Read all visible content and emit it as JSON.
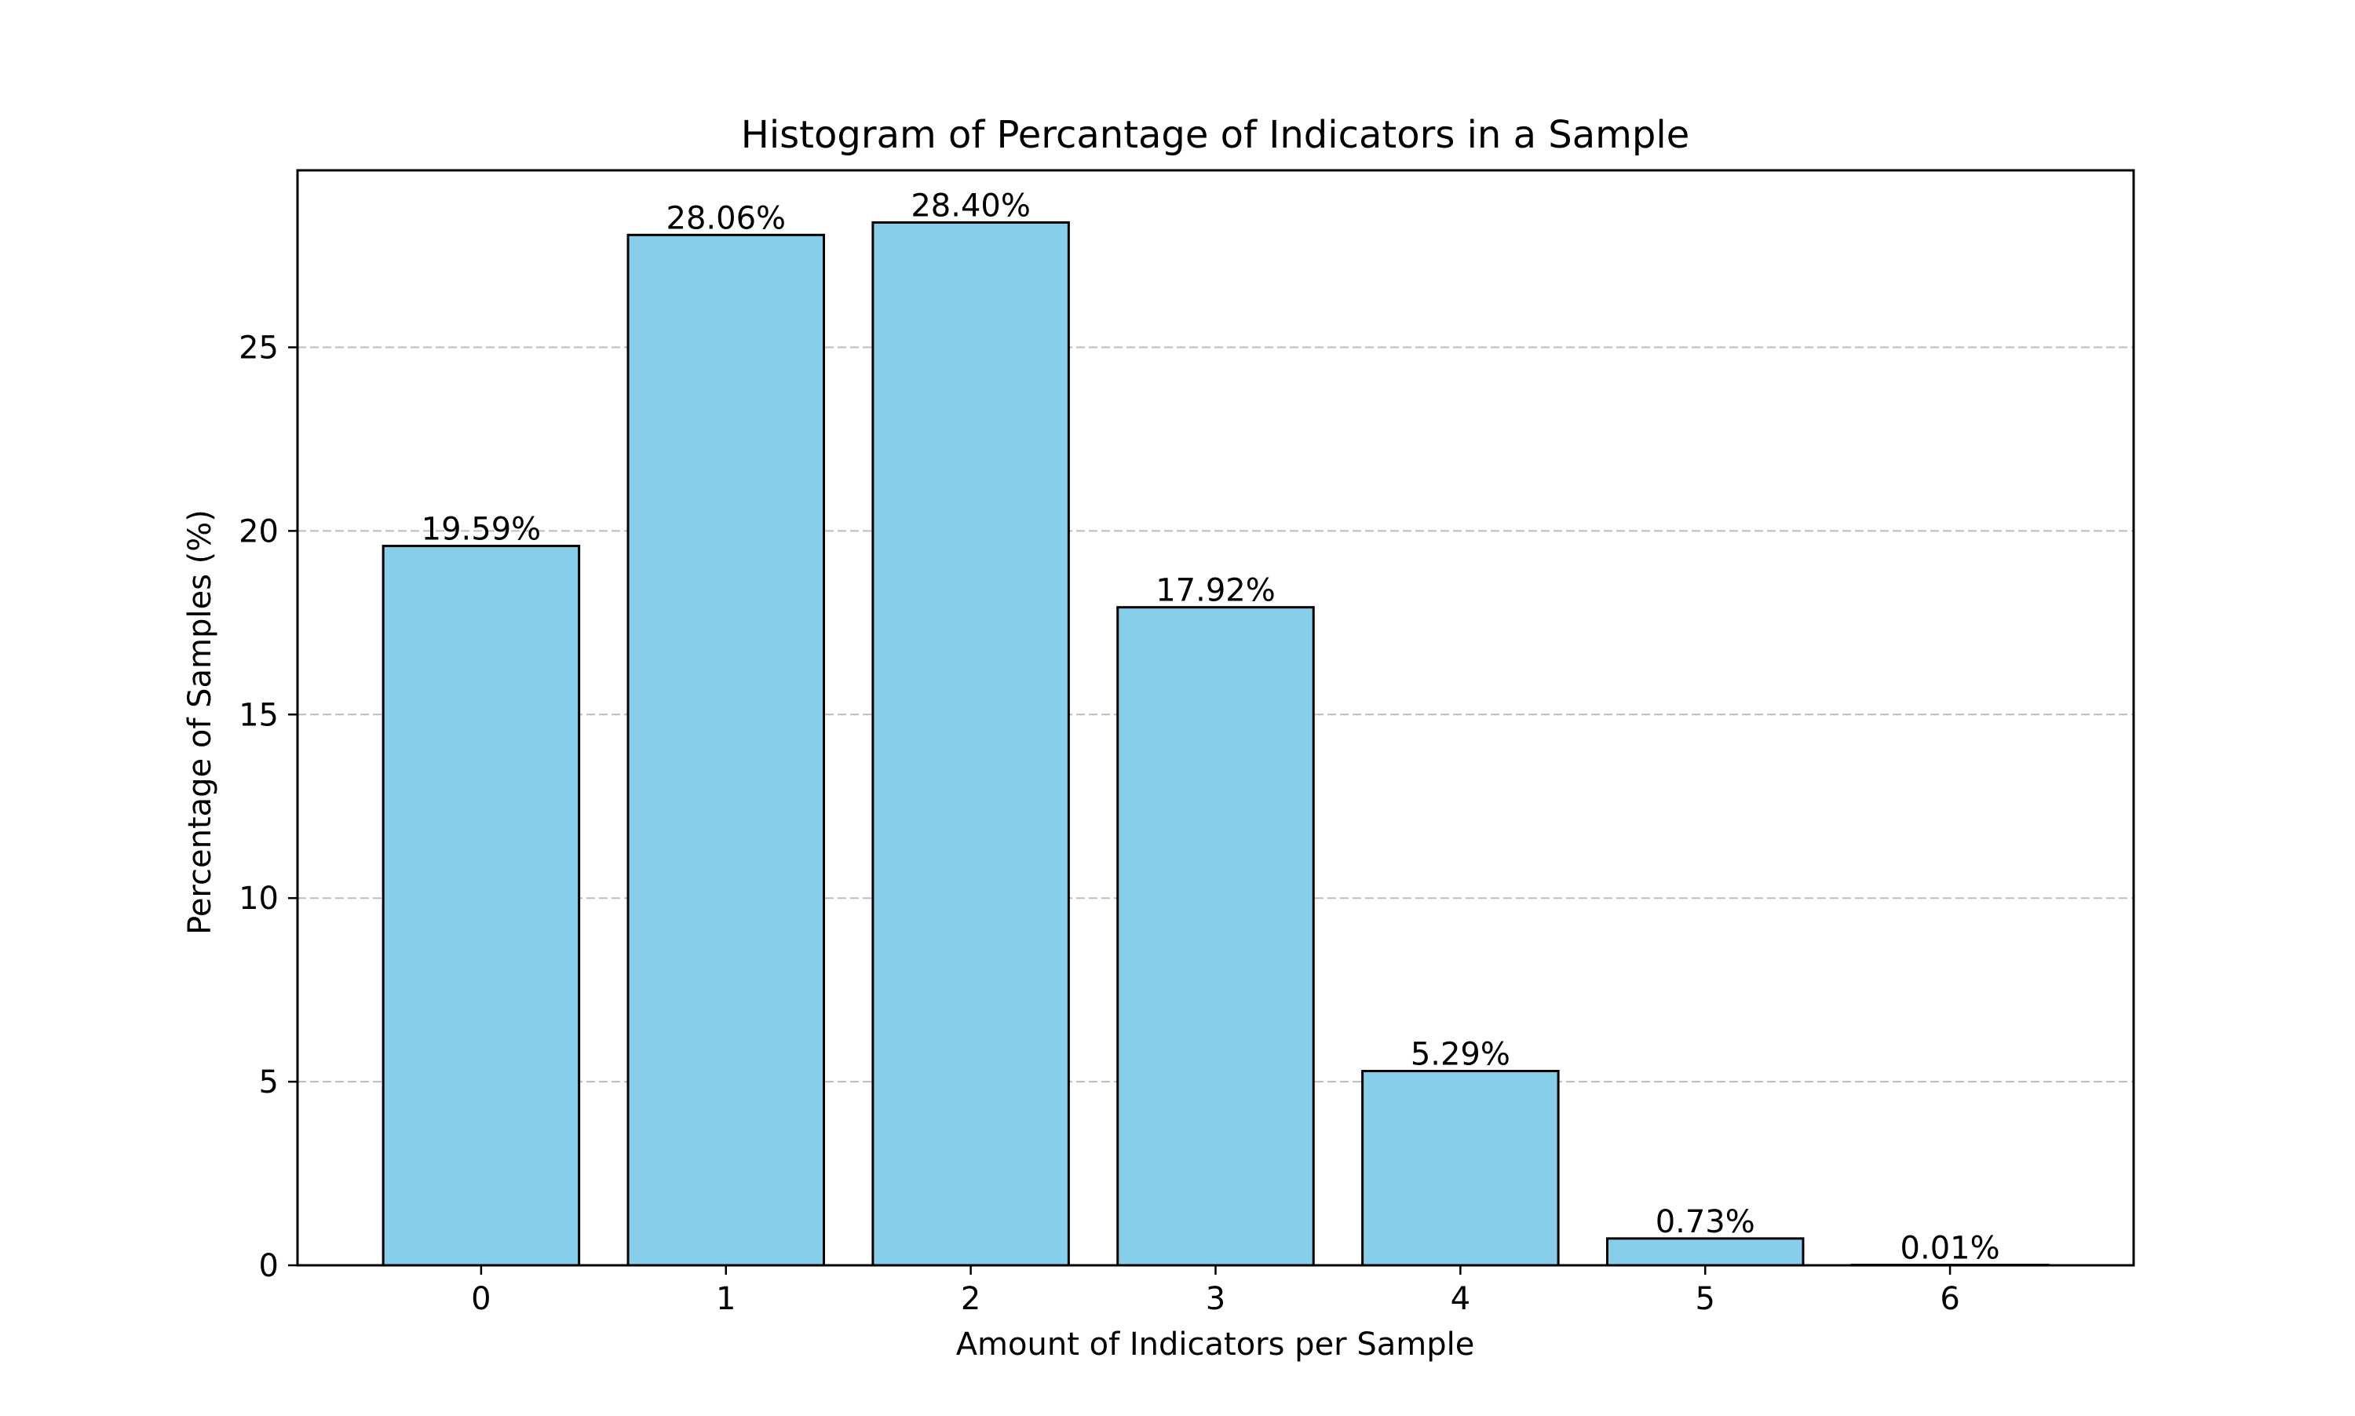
{
  "chart_data": {
    "type": "bar",
    "title": "Histogram of Percantage of Indicators in a Sample",
    "xlabel": "Amount of Indicators per Sample",
    "ylabel": "Percentage of Samples (%)",
    "categories": [
      "0",
      "1",
      "2",
      "3",
      "4",
      "5",
      "6"
    ],
    "values": [
      19.59,
      28.06,
      28.4,
      17.92,
      5.29,
      0.73,
      0.01
    ],
    "data_labels": [
      "19.59%",
      "28.06%",
      "28.40%",
      "17.92%",
      "5.29%",
      "0.73%",
      "0.01%"
    ],
    "y_ticks": [
      0,
      5,
      10,
      15,
      20,
      25
    ],
    "ylim": [
      0,
      29.82
    ],
    "xlim": [
      -0.75,
      6.75
    ],
    "grid": "y-axis dashed",
    "colors": {
      "bar_fill": "#87CEEB",
      "bar_edge": "#000000",
      "grid": "#BDBDBD",
      "axes": "#000000"
    }
  }
}
